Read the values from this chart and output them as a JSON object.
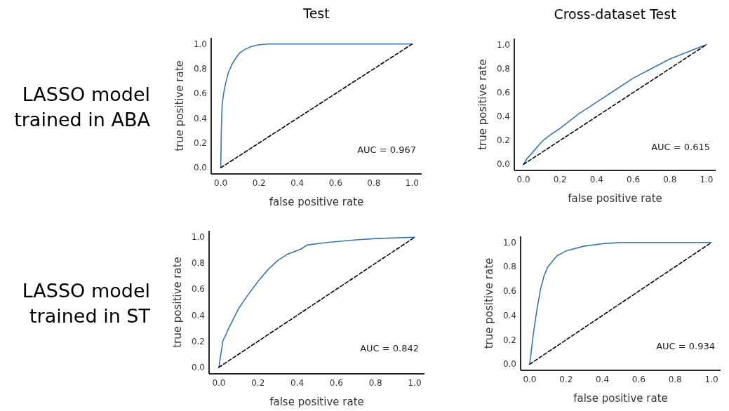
{
  "chart_data": [
    {
      "type": "line",
      "title": "Test",
      "xlabel": "false positive rate",
      "ylabel": "true positive rate",
      "xlim": [
        -0.05,
        1.05
      ],
      "ylim": [
        -0.05,
        1.05
      ],
      "xticks": [
        {
          "value": 0,
          "label": "0.0"
        },
        {
          "value": 0.2,
          "label": "0.2"
        },
        {
          "value": 0.4,
          "label": "0.4"
        },
        {
          "value": 0.6,
          "label": "0.6"
        },
        {
          "value": 0.8,
          "label": "0.8"
        },
        {
          "value": 1,
          "label": "1.0"
        }
      ],
      "yticks": [
        {
          "value": 0,
          "label": "0.0"
        },
        {
          "value": 0.2,
          "label": "0.2"
        },
        {
          "value": 0.4,
          "label": "0.4"
        },
        {
          "value": 0.6,
          "label": "0.6"
        },
        {
          "value": 0.8,
          "label": "0.8"
        },
        {
          "value": 1,
          "label": "1.0"
        }
      ],
      "grid": false,
      "annotations": [
        "LASSO model trained in ABA",
        "AUC = 0.967"
      ],
      "series": [
        {
          "color": "#3a76af",
          "line_style": "solid",
          "x": [
            0,
            0.003,
            0.007,
            0.015,
            0.025,
            0.04,
            0.06,
            0.08,
            0.1,
            0.13,
            0.16,
            0.2,
            0.25,
            1
          ],
          "values": [
            0,
            0.3,
            0.5,
            0.6,
            0.68,
            0.77,
            0.84,
            0.89,
            0.93,
            0.96,
            0.98,
            0.995,
            1,
            1
          ]
        },
        {
          "color": "#000000",
          "line_style": "dashed",
          "x": [
            0,
            1
          ],
          "values": [
            0,
            1
          ]
        }
      ]
    },
    {
      "type": "line",
      "title": "Cross-dataset Test",
      "xlabel": "false positive rate",
      "ylabel": "true positive rate",
      "xlim": [
        -0.05,
        1.05
      ],
      "ylim": [
        -0.05,
        1.05
      ],
      "xticks": [
        {
          "value": 0,
          "label": "0.0"
        },
        {
          "value": 0.2,
          "label": "0.2"
        },
        {
          "value": 0.4,
          "label": "0.4"
        },
        {
          "value": 0.6,
          "label": "0.6"
        },
        {
          "value": 0.8,
          "label": "0.8"
        },
        {
          "value": 1,
          "label": "1.0"
        }
      ],
      "yticks": [
        {
          "value": 0,
          "label": "0.0"
        },
        {
          "value": 0.2,
          "label": "0.2"
        },
        {
          "value": 0.4,
          "label": "0.4"
        },
        {
          "value": 0.6,
          "label": "0.6"
        },
        {
          "value": 0.8,
          "label": "0.8"
        },
        {
          "value": 1,
          "label": "1.0"
        }
      ],
      "grid": false,
      "annotations": [
        "AUC = 0.615"
      ],
      "series": [
        {
          "color": "#3a76af",
          "line_style": "solid",
          "x": [
            0,
            0.02,
            0.05,
            0.1,
            0.15,
            0.2,
            0.3,
            0.4,
            0.5,
            0.6,
            0.7,
            0.8,
            0.9,
            1
          ],
          "values": [
            0,
            0.05,
            0.1,
            0.19,
            0.25,
            0.3,
            0.42,
            0.52,
            0.62,
            0.72,
            0.8,
            0.88,
            0.94,
            1
          ]
        },
        {
          "color": "#000000",
          "line_style": "dashed",
          "x": [
            0,
            1
          ],
          "values": [
            0,
            1
          ]
        }
      ]
    },
    {
      "type": "line",
      "xlabel": "false positive rate",
      "ylabel": "true positive rate",
      "xlim": [
        -0.05,
        1.05
      ],
      "ylim": [
        -0.05,
        1.05
      ],
      "xticks": [
        {
          "value": 0,
          "label": "0.0"
        },
        {
          "value": 0.2,
          "label": "0.2"
        },
        {
          "value": 0.4,
          "label": "0.4"
        },
        {
          "value": 0.6,
          "label": "0.6"
        },
        {
          "value": 0.8,
          "label": "0.8"
        },
        {
          "value": 1,
          "label": "1.0"
        }
      ],
      "yticks": [
        {
          "value": 0,
          "label": "0.0"
        },
        {
          "value": 0.2,
          "label": "0.2"
        },
        {
          "value": 0.4,
          "label": "0.4"
        },
        {
          "value": 0.6,
          "label": "0.6"
        },
        {
          "value": 0.8,
          "label": "0.8"
        },
        {
          "value": 1,
          "label": "1.0"
        }
      ],
      "grid": false,
      "annotations": [
        "LASSO model trained in ST",
        "AUC = 0.842"
      ],
      "series": [
        {
          "color": "#3a76af",
          "line_style": "solid",
          "x": [
            0,
            0.01,
            0.02,
            0.05,
            0.1,
            0.15,
            0.2,
            0.25,
            0.3,
            0.35,
            0.42,
            0.45,
            0.55,
            0.7,
            0.8,
            1
          ],
          "values": [
            0,
            0.1,
            0.2,
            0.3,
            0.45,
            0.56,
            0.66,
            0.75,
            0.82,
            0.87,
            0.91,
            0.94,
            0.96,
            0.98,
            0.99,
            1
          ]
        },
        {
          "color": "#000000",
          "line_style": "dashed",
          "x": [
            0,
            1
          ],
          "values": [
            0,
            1
          ]
        }
      ]
    },
    {
      "type": "line",
      "xlabel": "false positive rate",
      "ylabel": "true positive rate",
      "xlim": [
        -0.05,
        1.05
      ],
      "ylim": [
        -0.05,
        1.05
      ],
      "xticks": [
        {
          "value": 0,
          "label": "0.0"
        },
        {
          "value": 0.2,
          "label": "0.2"
        },
        {
          "value": 0.4,
          "label": "0.4"
        },
        {
          "value": 0.6,
          "label": "0.6"
        },
        {
          "value": 0.8,
          "label": "0.8"
        },
        {
          "value": 1,
          "label": "1.0"
        }
      ],
      "yticks": [
        {
          "value": 0,
          "label": "0.0"
        },
        {
          "value": 0.2,
          "label": "0.2"
        },
        {
          "value": 0.4,
          "label": "0.4"
        },
        {
          "value": 0.6,
          "label": "0.6"
        },
        {
          "value": 0.8,
          "label": "0.8"
        },
        {
          "value": 1,
          "label": "1.0"
        }
      ],
      "grid": false,
      "annotations": [
        "AUC = 0.934"
      ],
      "series": [
        {
          "color": "#3a76af",
          "line_style": "solid",
          "x": [
            0,
            0.02,
            0.04,
            0.06,
            0.08,
            0.1,
            0.15,
            0.2,
            0.3,
            0.4,
            0.5,
            1
          ],
          "values": [
            0,
            0.25,
            0.45,
            0.62,
            0.73,
            0.8,
            0.89,
            0.93,
            0.97,
            0.99,
            1,
            1
          ]
        },
        {
          "color": "#000000",
          "line_style": "dashed",
          "x": [
            0,
            1
          ],
          "values": [
            0,
            1
          ]
        }
      ]
    }
  ]
}
